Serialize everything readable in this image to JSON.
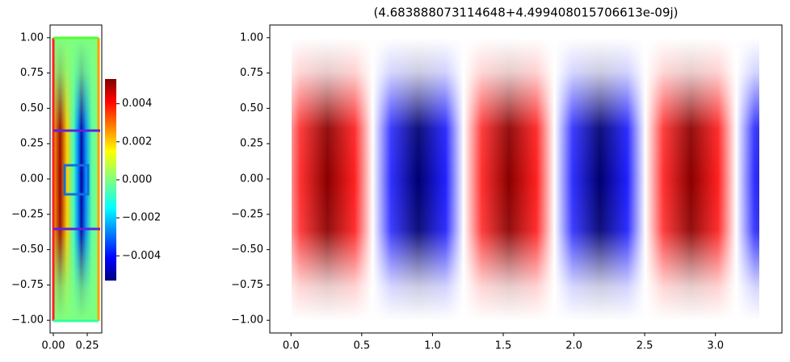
{
  "chart_data": [
    {
      "type": "image",
      "colormap": "jet",
      "xlim": [
        -0.024,
        0.357
      ],
      "ylim": [
        -1.09,
        1.09
      ],
      "xticks": [
        {
          "value": 0,
          "label": "0.00"
        },
        0.25
      ],
      "yticks": [
        {
          "value": -1,
          "label": "−1.00"
        },
        {
          "value": -0.75,
          "label": "−0.75"
        },
        {
          "value": -0.5,
          "label": "−0.50"
        },
        {
          "value": -0.25,
          "label": "−0.25"
        },
        {
          "value": 0,
          "label": "0.00"
        },
        0.25,
        {
          "value": 0.5,
          "label": "0.50"
        },
        0.75,
        {
          "value": 1,
          "label": "1.00"
        }
      ],
      "colorbar": {
        "clim": [
          -0.0053,
          0.0053
        ],
        "ticks": [
          {
            "value": -0.004,
            "label": "−0.004"
          },
          {
            "value": -0.002,
            "label": "−0.002"
          },
          {
            "value": 0,
            "label": "0.000"
          },
          0.002,
          0.004
        ]
      }
    },
    {
      "type": "image",
      "colormap": "bwr",
      "title": "(4.683888073114648+4.499408015706613e-09j)",
      "xlim": [
        -0.15,
        3.47
      ],
      "ylim": [
        -1.09,
        1.09
      ],
      "xticks": [
        {
          "value": 0,
          "label": "0.0"
        },
        0.5,
        {
          "value": 1,
          "label": "1.0"
        },
        1.5,
        {
          "value": 2,
          "label": "2.0"
        },
        2.5,
        {
          "value": 3,
          "label": "3.0"
        }
      ],
      "yticks": [
        {
          "value": -1,
          "label": "−1.00"
        },
        {
          "value": -0.75,
          "label": "−0.75"
        },
        {
          "value": -0.5,
          "label": "−0.50"
        },
        {
          "value": -0.25,
          "label": "−0.25"
        },
        {
          "value": 0,
          "label": "0.00"
        },
        0.25,
        {
          "value": 0.5,
          "label": "0.50"
        },
        0.75,
        {
          "value": 1,
          "label": "1.00"
        }
      ]
    }
  ]
}
